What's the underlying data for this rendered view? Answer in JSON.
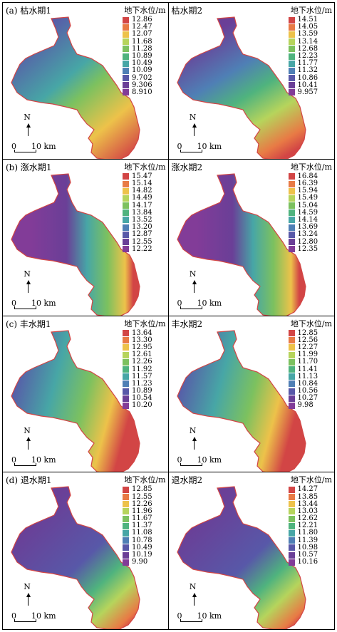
{
  "figure": {
    "scale_zero": "0",
    "scale_ten": "10 km",
    "north_label": "N",
    "panels": [
      {
        "title": "(a) 枯水期1",
        "legend_title": "地下水位/m",
        "scheme": "dry_a",
        "legend": [
          "12.86",
          "12.47",
          "12.07",
          "11.68",
          "11.28",
          "10.89",
          "10.49",
          "10.09",
          "9.702",
          "9.306",
          "8.910"
        ]
      },
      {
        "title": "枯水期2",
        "legend_title": "地下水位/m",
        "scheme": "dry_b",
        "legend": [
          "14.51",
          "14.05",
          "13.59",
          "13.14",
          "12.68",
          "12.23",
          "11.77",
          "11.32",
          "10.86",
          "10.41",
          "9.957"
        ]
      },
      {
        "title": "(b) 涨水期1",
        "legend_title": "地下水位/m",
        "scheme": "rise",
        "legend": [
          "15.47",
          "15.14",
          "14.82",
          "14.49",
          "14.17",
          "13.84",
          "13.52",
          "13.20",
          "12.87",
          "12.55",
          "12.22"
        ]
      },
      {
        "title": "涨水期2",
        "legend_title": "地下水位/m",
        "scheme": "rise",
        "legend": [
          "16.84",
          "16.39",
          "15.94",
          "15.49",
          "15.04",
          "14.59",
          "14.14",
          "13.69",
          "13.24",
          "12.80",
          "12.35"
        ]
      },
      {
        "title": "(c) 丰水期1",
        "legend_title": "地下水位/m",
        "scheme": "wet",
        "legend": [
          "13.64",
          "13.30",
          "12.95",
          "12.61",
          "12.26",
          "11.92",
          "11.57",
          "11.23",
          "10.89",
          "10.54",
          "10.20"
        ]
      },
      {
        "title": "丰水期2",
        "legend_title": "地下水位/m",
        "scheme": "wet",
        "legend": [
          "12.85",
          "12.56",
          "12.27",
          "11.99",
          "11.70",
          "11.41",
          "11.13",
          "10.84",
          "10.56",
          "10.27",
          "9.98"
        ]
      },
      {
        "title": "(d) 退水期1",
        "legend_title": "地下水位/m",
        "scheme": "fall",
        "legend": [
          "12.85",
          "12.55",
          "12.26",
          "11.96",
          "11.67",
          "11.37",
          "11.08",
          "10.78",
          "10.49",
          "10.19",
          "9.90"
        ]
      },
      {
        "title": "退水期2",
        "legend_title": "地下水位/m",
        "scheme": "fall",
        "legend": [
          "14.27",
          "13.85",
          "13.44",
          "13.03",
          "12.62",
          "12.21",
          "11.80",
          "11.39",
          "10.98",
          "10.57",
          "10.16"
        ]
      }
    ]
  },
  "colors": {
    "ramp": [
      "#d24545",
      "#e87a45",
      "#edc24a",
      "#b6d45c",
      "#7cc15f",
      "#4fb37e",
      "#47a6a6",
      "#4f7fb5",
      "#5858a8",
      "#6a3f97",
      "#823c98"
    ]
  }
}
